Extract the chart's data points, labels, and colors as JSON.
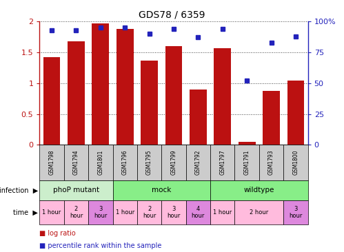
{
  "title": "GDS78 / 6359",
  "samples": [
    "GSM1798",
    "GSM1794",
    "GSM1801",
    "GSM1796",
    "GSM1795",
    "GSM1799",
    "GSM1792",
    "GSM1797",
    "GSM1791",
    "GSM1793",
    "GSM1800"
  ],
  "log_ratio": [
    1.42,
    1.68,
    1.97,
    1.88,
    1.36,
    1.6,
    0.9,
    1.57,
    0.05,
    0.88,
    1.04
  ],
  "percentile": [
    93,
    93,
    95,
    95,
    90,
    94,
    87,
    94,
    52,
    83,
    88
  ],
  "bar_color": "#BB1111",
  "dot_color": "#2222BB",
  "ylim_left": [
    0,
    2
  ],
  "ylim_right": [
    0,
    100
  ],
  "yticks_left": [
    0,
    0.5,
    1.0,
    1.5,
    2.0
  ],
  "yticks_right": [
    0,
    25,
    50,
    75,
    100
  ],
  "ytick_labels_left": [
    "0",
    "0.5",
    "1",
    "1.5",
    "2"
  ],
  "ytick_labels_right": [
    "0",
    "25",
    "50",
    "75",
    "100%"
  ],
  "grid_color": "#444444",
  "infect_defs": [
    {
      "label": "phoP mutant",
      "start": 0,
      "end": 3,
      "color": "#cceecc"
    },
    {
      "label": "mock",
      "start": 3,
      "end": 7,
      "color": "#88ee88"
    },
    {
      "label": "wildtype",
      "start": 7,
      "end": 11,
      "color": "#88ee88"
    }
  ],
  "time_defs": [
    {
      "label": "1 hour",
      "start": 0,
      "end": 1,
      "color": "#ffbbdd"
    },
    {
      "label": "2\nhour",
      "start": 1,
      "end": 2,
      "color": "#ffbbdd"
    },
    {
      "label": "3\nhour",
      "start": 2,
      "end": 3,
      "color": "#dd88dd"
    },
    {
      "label": "1 hour",
      "start": 3,
      "end": 4,
      "color": "#ffbbdd"
    },
    {
      "label": "2\nhour",
      "start": 4,
      "end": 5,
      "color": "#ffbbdd"
    },
    {
      "label": "3\nhour",
      "start": 5,
      "end": 6,
      "color": "#ffbbdd"
    },
    {
      "label": "4\nhour",
      "start": 6,
      "end": 7,
      "color": "#dd88dd"
    },
    {
      "label": "1 hour",
      "start": 7,
      "end": 8,
      "color": "#ffbbdd"
    },
    {
      "label": "2 hour",
      "start": 8,
      "end": 10,
      "color": "#ffbbdd"
    },
    {
      "label": "3\nhour",
      "start": 10,
      "end": 11,
      "color": "#dd88dd"
    }
  ],
  "sample_bg": "#cccccc"
}
